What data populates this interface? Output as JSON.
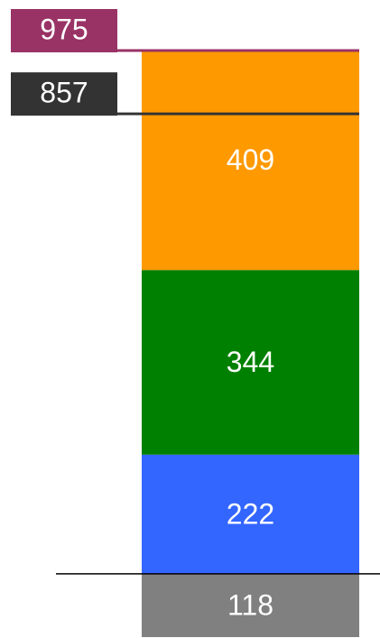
{
  "chart_data": {
    "type": "stacked_bar",
    "categories": [
      null
    ],
    "series": [
      {
        "color": "#3366ff",
        "values": [
          222
        ]
      },
      {
        "color": "#008000",
        "values": [
          344
        ]
      },
      {
        "color": "#ff9900",
        "values": [
          409
        ]
      },
      {
        "color": "#808080",
        "values": [
          -118
        ],
        "value_labels": [
          "118"
        ]
      }
    ],
    "markers": [
      {
        "value": 975,
        "color": "#993366"
      },
      {
        "value": 857,
        "color": "#333333"
      }
    ],
    "ylim": [
      -118,
      975
    ]
  }
}
